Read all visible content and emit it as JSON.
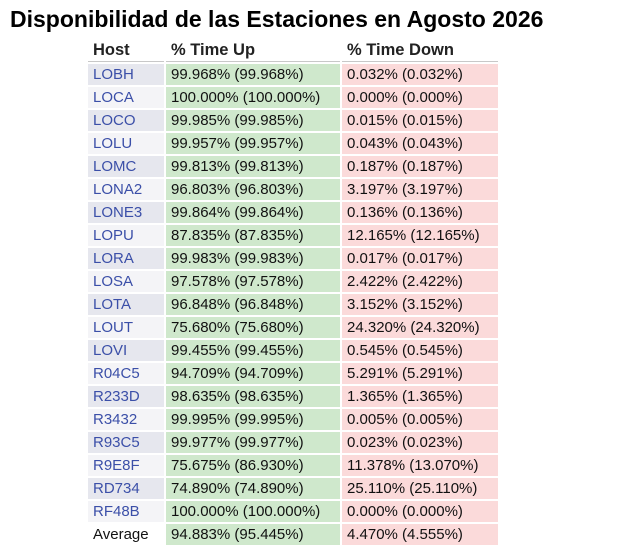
{
  "title": "Disponibilidad de las Estaciones en Agosto 2026",
  "colors": {
    "up_bg": "#cfe8cc",
    "down_bg": "#fbdada",
    "host_text": "#3b4fa8"
  },
  "table": {
    "headers": {
      "host": "Host",
      "time_up": "% Time Up",
      "time_down": "% Time Down"
    },
    "rows": [
      {
        "host": "LOBH",
        "up": "99.968% (99.968%)",
        "down": "0.032% (0.032%)"
      },
      {
        "host": "LOCA",
        "up": "100.000% (100.000%)",
        "down": "0.000% (0.000%)"
      },
      {
        "host": "LOCO",
        "up": "99.985% (99.985%)",
        "down": "0.015% (0.015%)"
      },
      {
        "host": "LOLU",
        "up": "99.957% (99.957%)",
        "down": "0.043% (0.043%)"
      },
      {
        "host": "LOMC",
        "up": "99.813% (99.813%)",
        "down": "0.187% (0.187%)"
      },
      {
        "host": "LONA2",
        "up": "96.803% (96.803%)",
        "down": "3.197% (3.197%)"
      },
      {
        "host": "LONE3",
        "up": "99.864% (99.864%)",
        "down": "0.136% (0.136%)"
      },
      {
        "host": "LOPU",
        "up": "87.835% (87.835%)",
        "down": "12.165% (12.165%)"
      },
      {
        "host": "LORA",
        "up": "99.983% (99.983%)",
        "down": "0.017% (0.017%)"
      },
      {
        "host": "LOSA",
        "up": "97.578% (97.578%)",
        "down": "2.422% (2.422%)"
      },
      {
        "host": "LOTA",
        "up": "96.848% (96.848%)",
        "down": "3.152% (3.152%)"
      },
      {
        "host": "LOUT",
        "up": "75.680% (75.680%)",
        "down": "24.320% (24.320%)"
      },
      {
        "host": "LOVI",
        "up": "99.455% (99.455%)",
        "down": "0.545% (0.545%)"
      },
      {
        "host": "R04C5",
        "up": "94.709% (94.709%)",
        "down": "5.291% (5.291%)"
      },
      {
        "host": "R233D",
        "up": "98.635% (98.635%)",
        "down": "1.365% (1.365%)"
      },
      {
        "host": "R3432",
        "up": "99.995% (99.995%)",
        "down": "0.005% (0.005%)"
      },
      {
        "host": "R93C5",
        "up": "99.977% (99.977%)",
        "down": "0.023% (0.023%)"
      },
      {
        "host": "R9E8F",
        "up": "75.675% (86.930%)",
        "down": "11.378% (13.070%)"
      },
      {
        "host": "RD734",
        "up": "74.890% (74.890%)",
        "down": "25.110% (25.110%)"
      },
      {
        "host": "RF48B",
        "up": "100.000% (100.000%)",
        "down": "0.000% (0.000%)"
      }
    ],
    "average": {
      "label": "Average",
      "up": "94.883% (95.445%)",
      "down": "4.470% (4.555%)"
    }
  }
}
